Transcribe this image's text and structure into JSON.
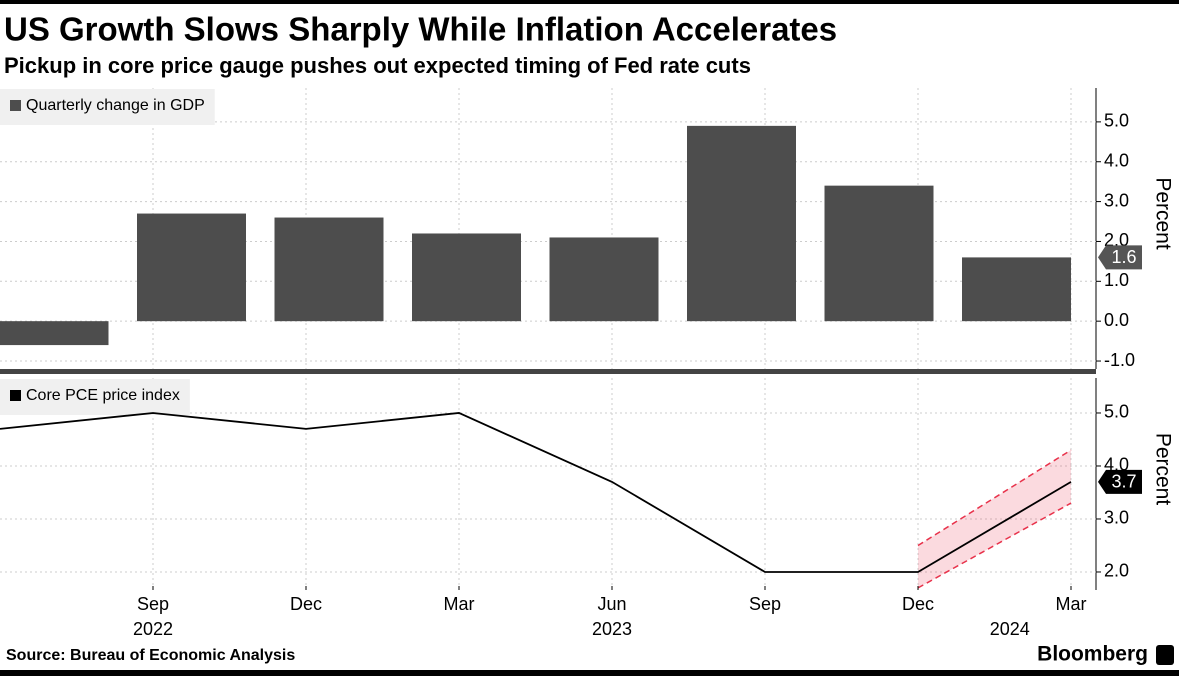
{
  "title": "US Growth Slows Sharply While Inflation Accelerates",
  "subtitle": "Pickup in core price gauge pushes out expected timing of Fed rate cuts",
  "source": "Source: Bureau of Economic Analysis",
  "brand": "Bloomberg",
  "chart_data": [
    {
      "type": "bar",
      "series": [
        {
          "name": "Quarterly change in GDP",
          "color": "#4d4d4d",
          "values": [
            -0.6,
            2.7,
            2.6,
            2.2,
            2.1,
            4.9,
            3.4,
            1.6
          ]
        }
      ],
      "ylim": [
        -1.2,
        5.85
      ],
      "yticks": [
        {
          "value": -1,
          "label": "-1.0"
        },
        {
          "value": 0,
          "label": "0.0"
        },
        {
          "value": 1,
          "label": "1.0"
        },
        {
          "value": 2,
          "label": "2.0"
        },
        {
          "value": 3,
          "label": "3.0"
        },
        {
          "value": 4,
          "label": "4.0"
        },
        {
          "value": 5,
          "label": "5.0"
        }
      ],
      "y_label": "Percent",
      "grid": true
    },
    {
      "type": "line",
      "categories": [
        null,
        "Sep",
        "Dec",
        "Mar",
        "Jun",
        "Sep",
        "Dec",
        "Mar"
      ],
      "year_labels": [
        "2022",
        "2023",
        "2024"
      ],
      "series": [
        {
          "name": "Core PCE price index",
          "color": "#000000",
          "values": [
            4.7,
            5.0,
            4.7,
            5.0,
            3.7,
            2.0,
            2.0,
            3.7
          ]
        }
      ],
      "band": {
        "color": "#e8324b",
        "upper": [
          null,
          null,
          null,
          null,
          null,
          null,
          2.5,
          4.3
        ],
        "lower": [
          null,
          null,
          null,
          null,
          null,
          null,
          1.7,
          3.3
        ]
      },
      "ylim": [
        1.66,
        5.66
      ],
      "yticks": [
        {
          "value": 2,
          "label": "2.0"
        },
        {
          "value": 3,
          "label": "3.0"
        },
        {
          "value": 4,
          "label": "4.0"
        },
        {
          "value": 5,
          "label": "5.0"
        }
      ],
      "y_label": "Percent",
      "grid": true
    }
  ]
}
